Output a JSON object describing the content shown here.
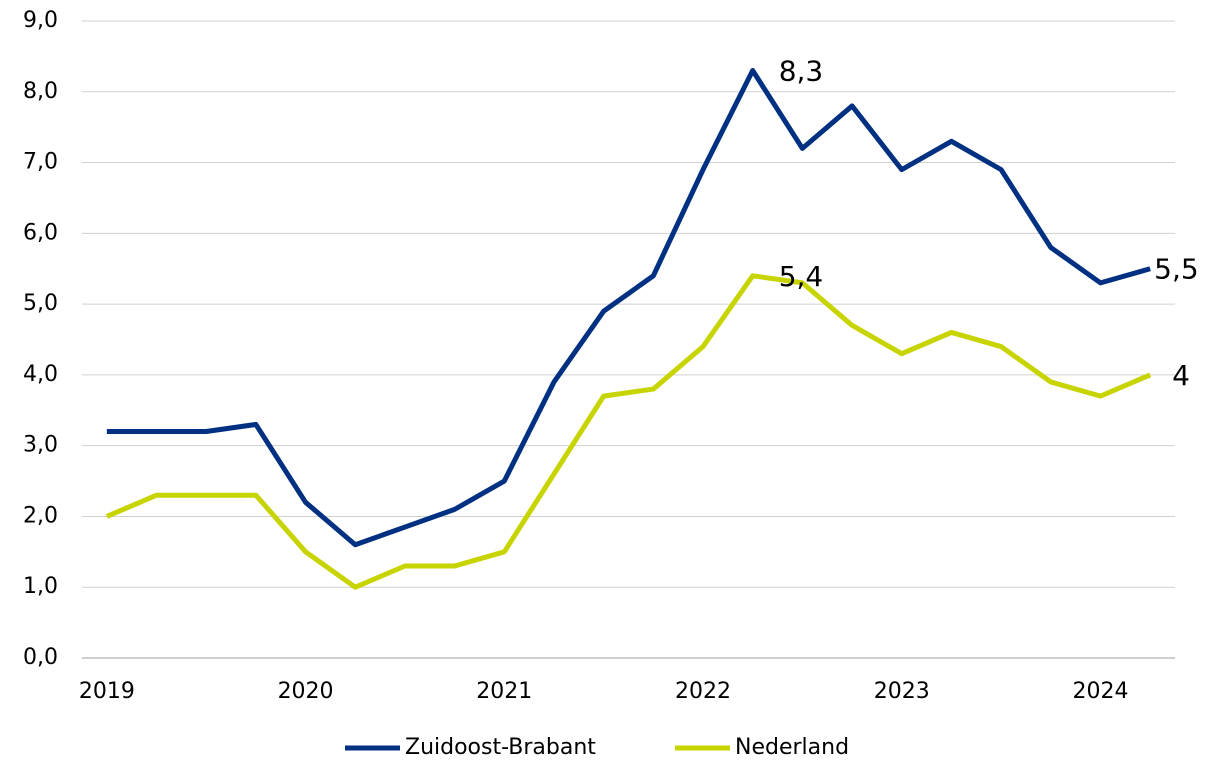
{
  "chart_data": {
    "type": "line",
    "categories": [
      "2019",
      null,
      null,
      null,
      "2020",
      null,
      null,
      null,
      "2021",
      null,
      null,
      null,
      "2022",
      null,
      null,
      null,
      "2023",
      null,
      null,
      null,
      "2024",
      null
    ],
    "series": [
      {
        "name": "Zuidoost-Brabant",
        "color": "#003082",
        "values": [
          3.2,
          3.2,
          3.2,
          3.3,
          2.2,
          1.6,
          1.85,
          2.1,
          2.5,
          3.9,
          4.9,
          5.4,
          6.9,
          8.3,
          7.2,
          7.8,
          6.9,
          7.3,
          6.9,
          5.8,
          5.3,
          5.5
        ],
        "value_labels": [
          null,
          null,
          null,
          null,
          null,
          null,
          null,
          null,
          null,
          null,
          null,
          null,
          null,
          "8,3",
          null,
          null,
          null,
          null,
          null,
          null,
          null,
          "5,5"
        ]
      },
      {
        "name": "Nederland",
        "color": "#c8d400",
        "values": [
          2.0,
          2.3,
          2.3,
          2.3,
          1.5,
          1.0,
          1.3,
          1.3,
          1.5,
          2.6,
          3.7,
          3.8,
          4.4,
          5.4,
          5.3,
          4.7,
          4.3,
          4.6,
          4.4,
          3.9,
          3.7,
          4.0
        ],
        "value_labels": [
          null,
          null,
          null,
          null,
          null,
          null,
          null,
          null,
          null,
          null,
          null,
          null,
          null,
          "5,4",
          null,
          null,
          null,
          null,
          null,
          null,
          null,
          "4"
        ]
      }
    ],
    "ylim": [
      0,
      9
    ],
    "yticks": [
      {
        "value": 0,
        "label": "0,0"
      },
      {
        "value": 1,
        "label": "1,0"
      },
      {
        "value": 2,
        "label": "2,0"
      },
      {
        "value": 3,
        "label": "3,0"
      },
      {
        "value": 4,
        "label": "4,0"
      },
      {
        "value": 5,
        "label": "5,0"
      },
      {
        "value": 6,
        "label": "6,0"
      },
      {
        "value": 7,
        "label": "7,0"
      },
      {
        "value": 8,
        "label": "8,0"
      },
      {
        "value": 9,
        "label": "9,0"
      }
    ],
    "grid": true,
    "legend": "bottom"
  }
}
